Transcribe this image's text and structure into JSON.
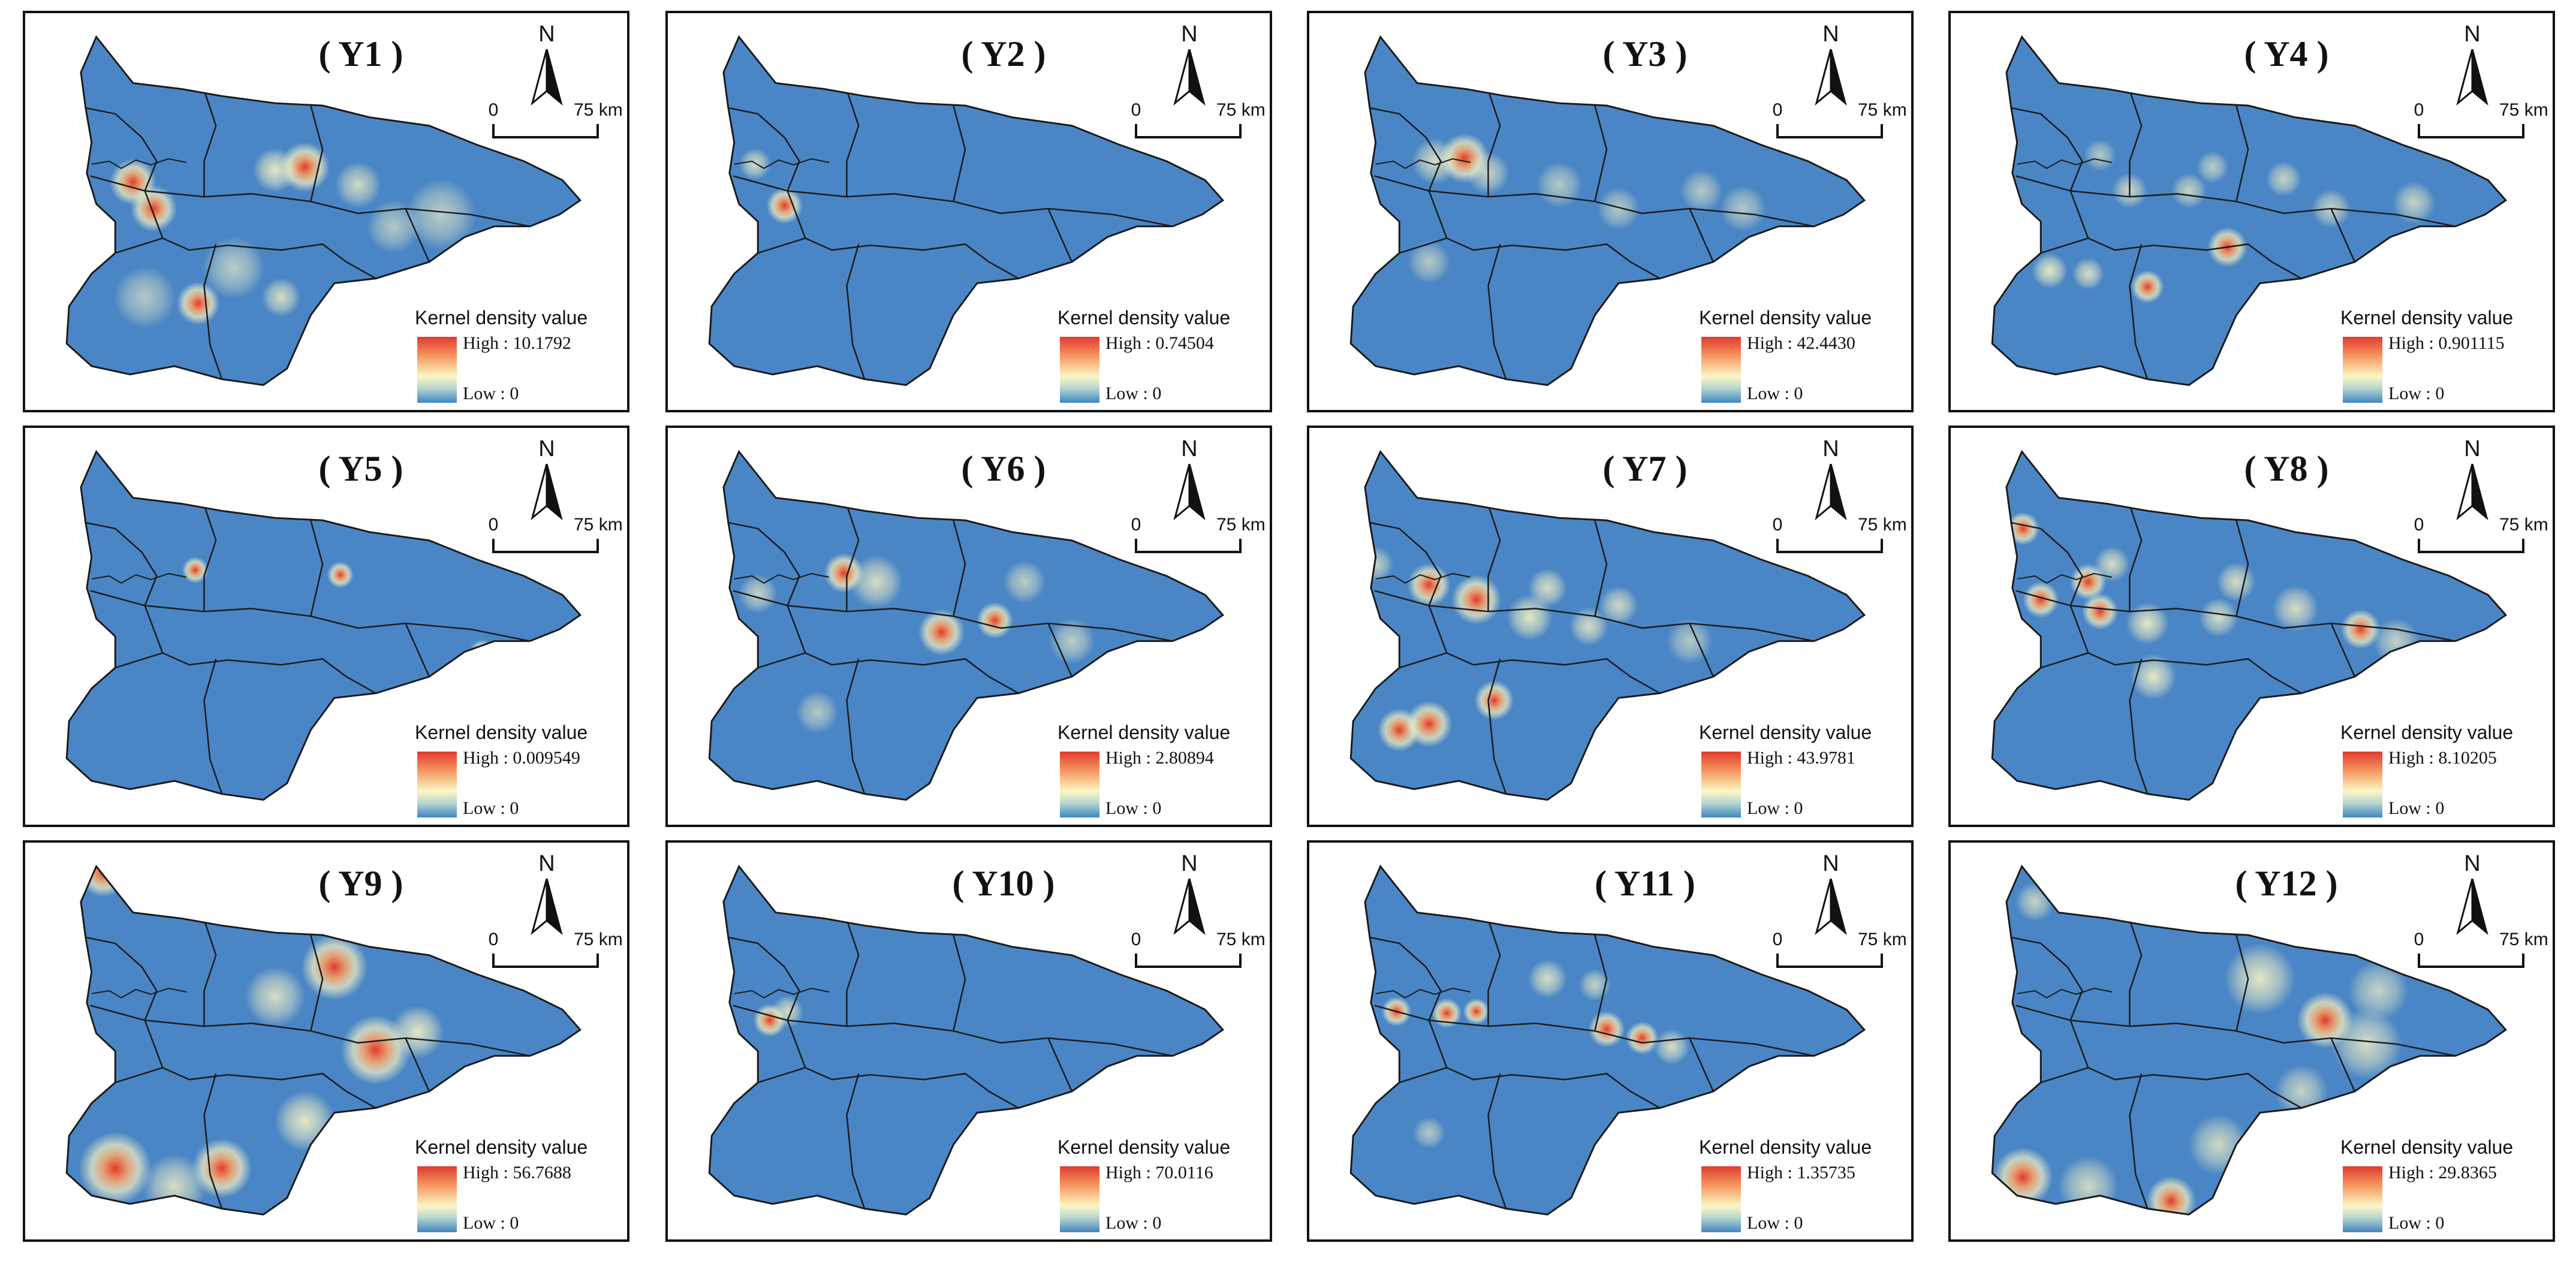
{
  "scale": {
    "zero": "0",
    "distance": "75 km"
  },
  "north": "N",
  "legend": {
    "title": "Kernel density value",
    "high_prefix": "High : ",
    "low_text": "Low : 0"
  },
  "colors": {
    "base": "#4a86c5",
    "hot": "#e13a2c",
    "warm": "#f6a36b",
    "pale": "#f6f2c5",
    "boundary": "#1a1a1a"
  },
  "panels": [
    {
      "title": "( Y1 )",
      "high": "10.1792",
      "hotspots": []
    },
    {
      "title": "( Y2 )",
      "high": "0.74504",
      "hotspots": []
    },
    {
      "title": "( Y3 )",
      "high": "42.4430",
      "hotspots": []
    },
    {
      "title": "( Y4 )",
      "high": "0.901115",
      "hotspots": []
    },
    {
      "title": "( Y5 )",
      "high": "0.009549",
      "hotspots": []
    },
    {
      "title": "( Y6 )",
      "high": "2.80894",
      "hotspots": []
    },
    {
      "title": "( Y7 )",
      "high": "43.9781",
      "hotspots": []
    },
    {
      "title": "( Y8 )",
      "high": "8.10205",
      "hotspots": []
    },
    {
      "title": "( Y9 )",
      "high": "56.7688",
      "hotspots": []
    },
    {
      "title": "( Y10 )",
      "high": "70.0116",
      "hotspots": []
    },
    {
      "title": "( Y11 )",
      "high": "1.35735",
      "hotspots": []
    },
    {
      "title": "( Y12 )",
      "high": "29.8365",
      "hotspots": []
    }
  ]
}
